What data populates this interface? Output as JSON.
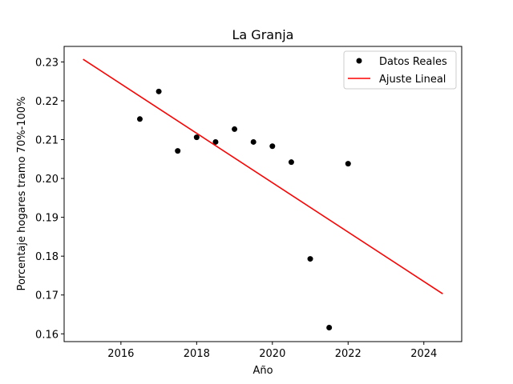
{
  "chart_data": {
    "type": "scatter",
    "title": "La Granja",
    "xlabel": "Año",
    "ylabel": "Porcentaje hogares tramo 70%-100%",
    "xlim": [
      2014.5,
      2025.0
    ],
    "ylim": [
      0.158,
      0.234
    ],
    "xticks": [
      2016,
      2018,
      2020,
      2022,
      2024
    ],
    "yticks": [
      0.16,
      0.17,
      0.18,
      0.19,
      0.2,
      0.21,
      0.22,
      0.23
    ],
    "grid": false,
    "legend_position": "top-right",
    "series": [
      {
        "name": "Datos Reales",
        "type": "scatter",
        "color": "#000000",
        "x": [
          2016.5,
          2017.0,
          2017.5,
          2018.0,
          2018.5,
          2019.0,
          2019.5,
          2020.0,
          2020.5,
          2021.0,
          2021.5,
          2022.0
        ],
        "y": [
          0.2153,
          0.2224,
          0.2071,
          0.2106,
          0.2094,
          0.2127,
          0.2094,
          0.2083,
          0.2042,
          0.1793,
          0.1616,
          0.2038
        ]
      },
      {
        "name": "Ajuste Lineal",
        "type": "line",
        "color": "#ff0000",
        "x": [
          2015.0,
          2024.5
        ],
        "y": [
          0.2307,
          0.1703
        ]
      }
    ]
  }
}
